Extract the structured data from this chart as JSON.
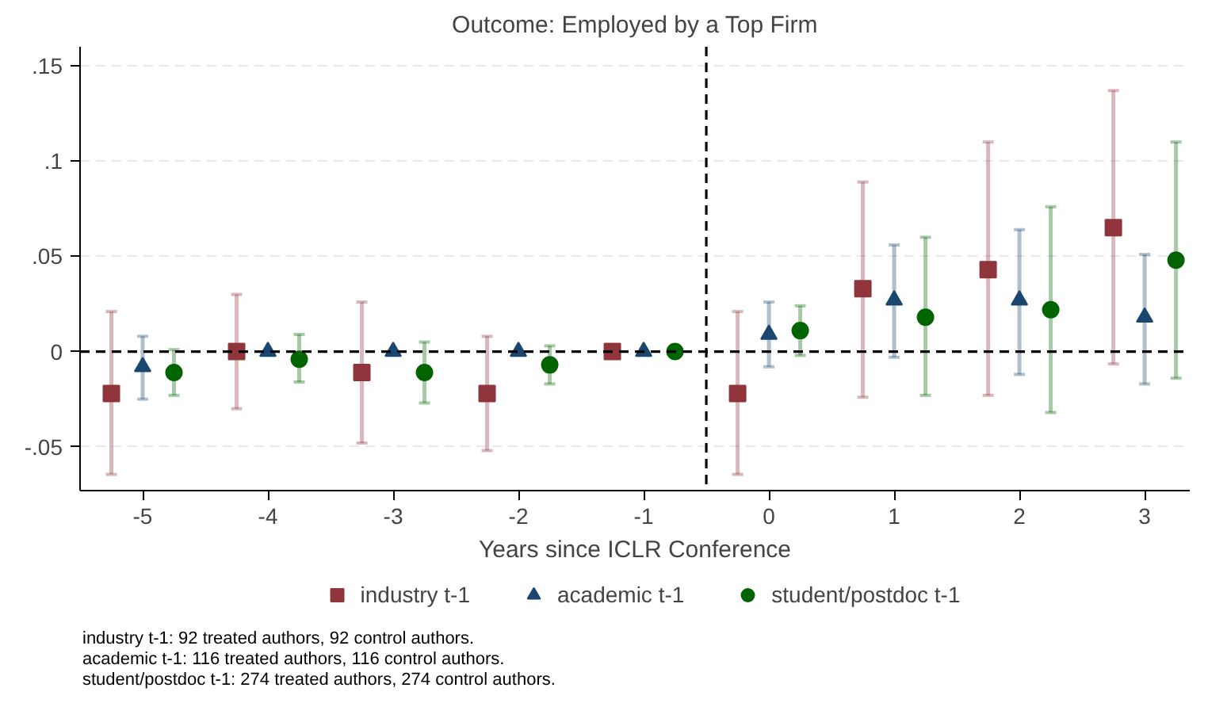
{
  "chart_data": {
    "type": "scatter",
    "title": "Outcome: Employed by a Top Firm",
    "xlabel": "Years since ICLR Conference",
    "xlim": [
      -5.5,
      3.36
    ],
    "ylim": [
      -0.073,
      0.16
    ],
    "xticks": [
      -5,
      -4,
      -3,
      -2,
      -1,
      0,
      1,
      2,
      3
    ],
    "yticks": [
      {
        "value": -0.05,
        "label": "-.05"
      },
      0,
      {
        "value": 0.05,
        "label": ".05"
      },
      {
        "value": 0.1,
        "label": ".1"
      },
      {
        "value": 0.15,
        "label": ".15"
      }
    ],
    "grid": "y",
    "legend": "bottom",
    "ref_lines": [
      {
        "axis": "y",
        "value": 0,
        "line_style": "dashed",
        "color": "#000000"
      },
      {
        "axis": "x",
        "value": -0.5,
        "line_style": "dashed",
        "color": "#000000"
      }
    ],
    "series": [
      {
        "name": "industry t-1",
        "color": "#90353b",
        "marker": "square",
        "x": [
          -5.25,
          -4.25,
          -3.25,
          -2.25,
          -1.25,
          -0.25,
          0.75,
          1.75,
          2.75
        ],
        "values": [
          -0.022,
          0,
          -0.011,
          -0.022,
          0,
          -0.022,
          0.033,
          0.043,
          0.065
        ],
        "errors": [
          [
            -0.0645,
            0.021
          ],
          [
            -0.03,
            0.03
          ],
          [
            -0.048,
            0.026
          ],
          [
            -0.052,
            0.008
          ],
          null,
          [
            -0.0645,
            0.021
          ],
          [
            -0.024,
            0.089
          ],
          [
            -0.023,
            0.11
          ],
          [
            -0.0065,
            0.137
          ]
        ]
      },
      {
        "name": "academic t-1",
        "color": "#1a476f",
        "marker": "triangle",
        "x": [
          -5,
          -4,
          -3,
          -2,
          -1,
          0,
          1,
          2,
          3
        ],
        "values": [
          -0.008,
          0,
          0,
          0,
          0,
          0.009,
          0.027,
          0.027,
          0.018
        ],
        "errors": [
          [
            -0.025,
            0.008
          ],
          null,
          null,
          null,
          null,
          [
            -0.008,
            0.026
          ],
          [
            -0.003,
            0.056
          ],
          [
            -0.012,
            0.064
          ],
          [
            -0.017,
            0.051
          ]
        ]
      },
      {
        "name": "student/postdoc t-1",
        "color": "#006400",
        "marker": "circle",
        "x": [
          -4.75,
          -3.75,
          -2.75,
          -1.75,
          -0.75,
          0.25,
          1.25,
          2.25,
          3.25
        ],
        "values": [
          -0.011,
          -0.004,
          -0.011,
          -0.007,
          0,
          0.011,
          0.018,
          0.022,
          0.048
        ],
        "errors": [
          [
            -0.023,
            0.001
          ],
          [
            -0.016,
            0.009
          ],
          [
            -0.027,
            0.005
          ],
          [
            -0.017,
            0.003
          ],
          null,
          [
            -0.002,
            0.024
          ],
          [
            -0.023,
            0.06
          ],
          [
            -0.032,
            0.076
          ],
          [
            -0.014,
            0.11
          ]
        ]
      }
    ],
    "annotations": [
      "industry t-1: 92 treated authors, 92 control authors.",
      "academic t-1: 116 treated authors, 116 control authors.",
      "student/postdoc t-1: 274 treated authors, 274 control authors."
    ]
  }
}
